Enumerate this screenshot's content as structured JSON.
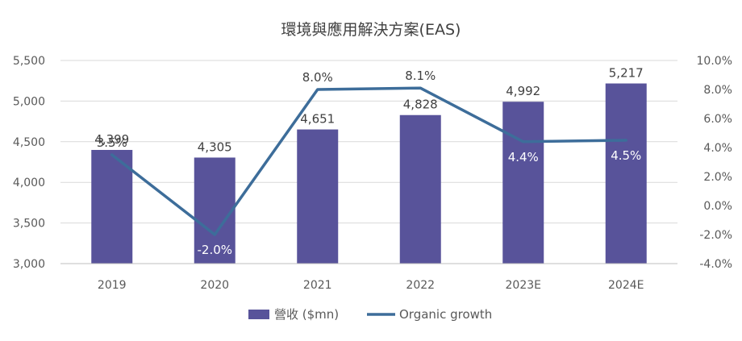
{
  "chart_data": {
    "type": "bar+line",
    "title": "環境與應用解決方案(EAS)",
    "categories": [
      "2019",
      "2020",
      "2021",
      "2022",
      "2023E",
      "2024E"
    ],
    "series": [
      {
        "name": "營收 ($mn)",
        "type": "bar",
        "axis": "left",
        "values": [
          4399,
          4305,
          4651,
          4828,
          4992,
          5217
        ],
        "labels": [
          "4,399",
          "4,305",
          "4,651",
          "4,828",
          "4,992",
          "5,217"
        ],
        "color": "#58539a"
      },
      {
        "name": "Organic growth",
        "type": "line",
        "axis": "right",
        "values": [
          3.5,
          -2.0,
          8.0,
          8.1,
          4.4,
          4.5
        ],
        "labels": [
          "3.5%",
          "-2.0%",
          "8.0%",
          "8.1%",
          "4.4%",
          "4.5%"
        ],
        "color": "#3d6d9a"
      }
    ],
    "y_left": {
      "ylim": [
        3000,
        5500
      ],
      "ticks": [
        "3,000",
        "3,500",
        "4,000",
        "4,500",
        "5,000",
        "5,500"
      ]
    },
    "y_right": {
      "ylim": [
        -4.0,
        10.0
      ],
      "ticks": [
        "-4.0%",
        "-2.0%",
        "0.0%",
        "2.0%",
        "4.0%",
        "6.0%",
        "8.0%",
        "10.0%"
      ]
    },
    "grid": true,
    "legend_position": "bottom"
  }
}
